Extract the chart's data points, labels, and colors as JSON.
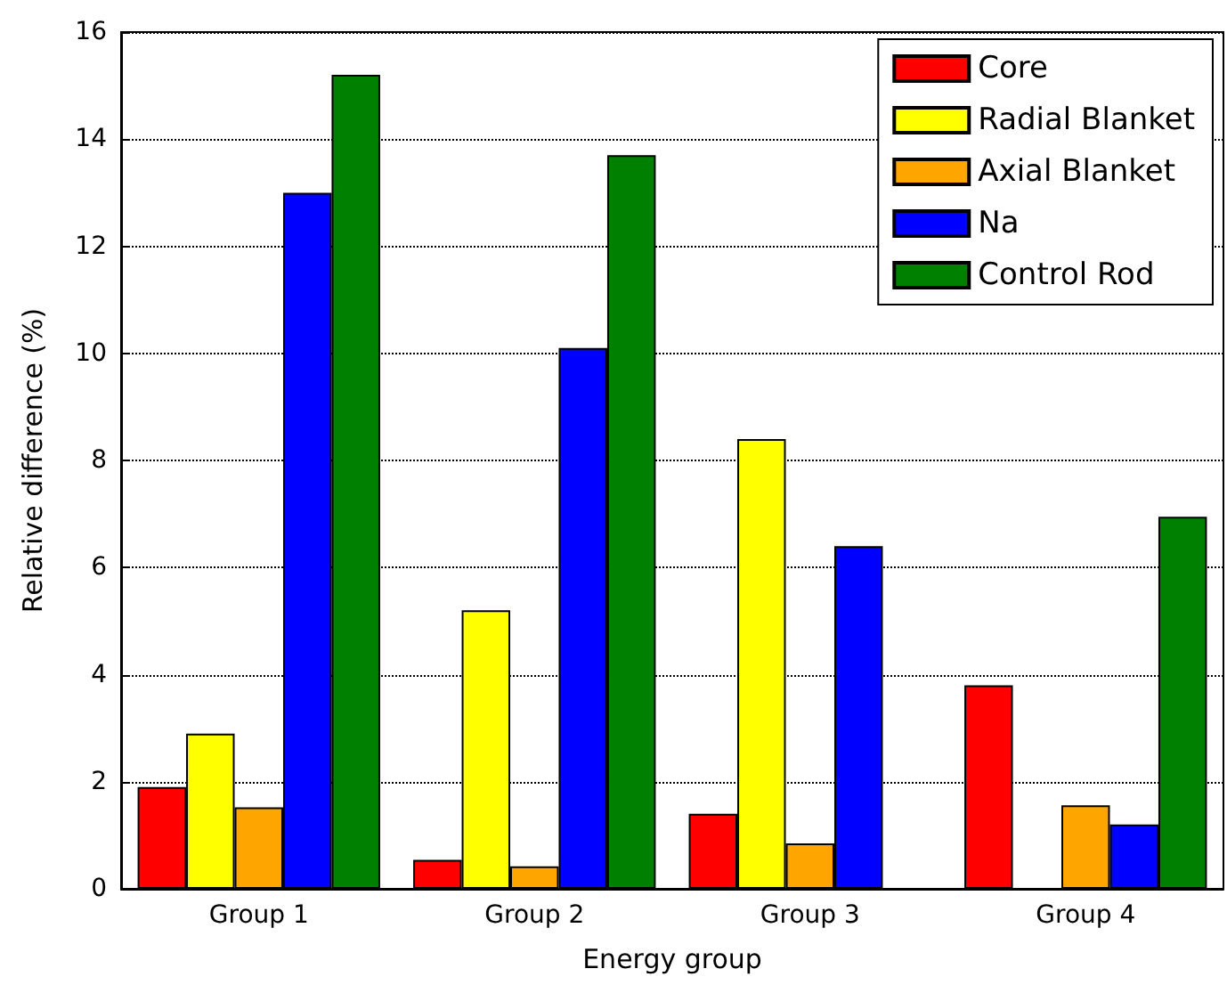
{
  "chart_data": {
    "type": "bar",
    "xlabel": "Energy group",
    "ylabel": "Relative difference (%)",
    "categories": [
      "Group 1",
      "Group 2",
      "Group 3",
      "Group 4"
    ],
    "series": [
      {
        "name": "Core",
        "color": "#ff0000",
        "values": [
          1.9,
          0.54,
          1.4,
          3.8
        ]
      },
      {
        "name": "Radial Blanket",
        "color": "#ffff00",
        "values": [
          2.9,
          5.2,
          8.4,
          null
        ]
      },
      {
        "name": "Axial Blanket",
        "color": "#ffa500",
        "values": [
          1.52,
          0.42,
          0.85,
          1.56
        ]
      },
      {
        "name": "Na",
        "color": "#0000ff",
        "values": [
          13.0,
          10.1,
          6.4,
          1.2
        ]
      },
      {
        "name": "Control Rod",
        "color": "#008000",
        "values": [
          15.2,
          13.7,
          null,
          6.95
        ]
      }
    ],
    "ylim": [
      0,
      16
    ],
    "yticks": [
      0,
      2,
      4,
      6,
      8,
      10,
      12,
      14,
      16
    ],
    "grid": "y",
    "legend": "top right"
  }
}
